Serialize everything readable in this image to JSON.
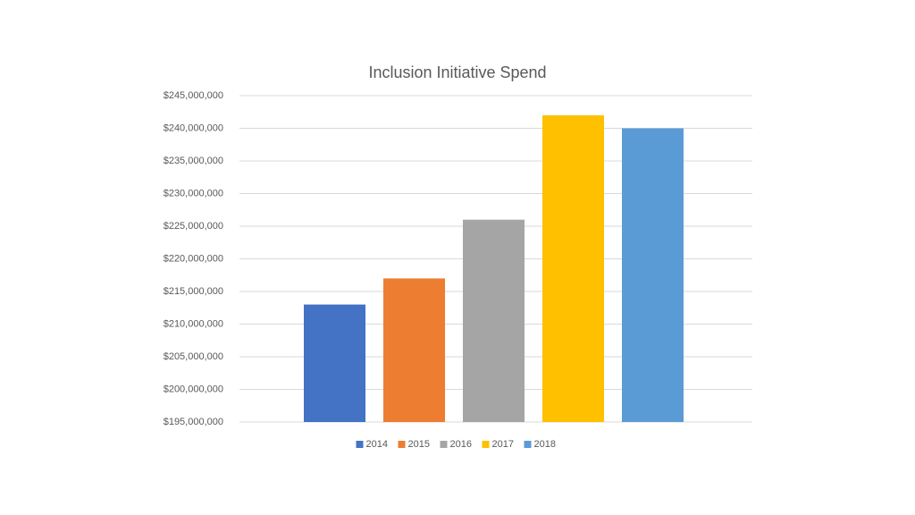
{
  "chart_data": {
    "type": "bar",
    "title": "Inclusion Initiative Spend",
    "categories": [
      null
    ],
    "series": [
      {
        "name": "2014",
        "color": "#4472c4",
        "values": [
          213000000
        ]
      },
      {
        "name": "2015",
        "color": "#ed7d31",
        "values": [
          217000000
        ]
      },
      {
        "name": "2016",
        "color": "#a5a5a5",
        "values": [
          226000000
        ]
      },
      {
        "name": "2017",
        "color": "#ffc000",
        "values": [
          242000000
        ]
      },
      {
        "name": "2018",
        "color": "#5b9bd5",
        "values": [
          240000000
        ]
      }
    ],
    "ylim": [
      195000000,
      245000000
    ],
    "yticks": [
      {
        "value": 195000000,
        "label": "$195,000,000"
      },
      {
        "value": 200000000,
        "label": "$200,000,000"
      },
      {
        "value": 205000000,
        "label": "$205,000,000"
      },
      {
        "value": 210000000,
        "label": "$210,000,000"
      },
      {
        "value": 215000000,
        "label": "$215,000,000"
      },
      {
        "value": 220000000,
        "label": "$220,000,000"
      },
      {
        "value": 225000000,
        "label": "$225,000,000"
      },
      {
        "value": 230000000,
        "label": "$230,000,000"
      },
      {
        "value": 235000000,
        "label": "$235,000,000"
      },
      {
        "value": 240000000,
        "label": "$240,000,000"
      },
      {
        "value": 245000000,
        "label": "$245,000,000"
      }
    ],
    "grid": true,
    "legend": "bottom"
  }
}
